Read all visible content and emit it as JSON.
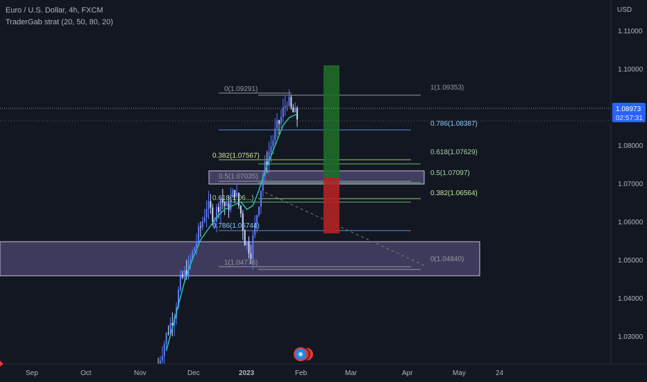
{
  "header": {
    "symbol_line": "Euro / U.S. Dollar, 4h, FXCM",
    "indicator_line": "TraderGab strat (20, 50, 80, 20)"
  },
  "price_axis": {
    "currency": "USD",
    "ticks": [
      "1.11000",
      "1.10000",
      "1.08000",
      "1.07000",
      "1.06000",
      "1.05000",
      "1.04000",
      "1.03000"
    ],
    "current_price": "1.08973",
    "countdown": "02:57:31"
  },
  "time_axis": {
    "ticks": [
      "Sep",
      "Oct",
      "Nov",
      "Dec",
      "2023",
      "Feb",
      "Mar",
      "Apr",
      "May",
      "24"
    ]
  },
  "fib_sets": [
    {
      "levels": [
        {
          "text": "0(1.09291)",
          "color": "#9598a1"
        },
        {
          "text": "0.382(1.07567)",
          "color": "#c8e6a0"
        },
        {
          "text": "0.5(1.07035)",
          "color": "#9598a1"
        },
        {
          "text": "0.618(1.06...)",
          "color": "#a5d6a7"
        },
        {
          "text": "0.786(1.05744)",
          "color": "#90caf9"
        },
        {
          "text": "1(1.04778)",
          "color": "#9598a1"
        }
      ]
    },
    {
      "levels": [
        {
          "text": "1(1.09353)",
          "color": "#9598a1"
        },
        {
          "text": "0.786(1.08387)",
          "color": "#90caf9"
        },
        {
          "text": "0.618(1.07629)",
          "color": "#a5d6a7"
        },
        {
          "text": "0.5(1.07097)",
          "color": "#a5d6a7"
        },
        {
          "text": "0.382(1.06564)",
          "color": "#c8e6a0"
        },
        {
          "text": "0(1.04840)",
          "color": "#9598a1"
        }
      ]
    }
  ],
  "colors": {
    "background": "#131722",
    "candle": "#5b7bff",
    "ma_line": "#26c6a8",
    "zone_fill": "#6a5e95",
    "target_green": "#1f6b2a",
    "stop_red": "#b22222",
    "price_tag": "#2962ff"
  },
  "chart_data": {
    "type": "candlestick",
    "title": "Euro / U.S. Dollar, 4h, FXCM",
    "ylim": [
      1.0225,
      1.1175
    ],
    "x_ticks": [
      "Sep",
      "Oct",
      "Nov",
      "Dec",
      "2023",
      "Feb",
      "Mar",
      "Apr",
      "May",
      "24"
    ],
    "y_ticks": [
      1.03,
      1.04,
      1.05,
      1.06,
      1.07,
      1.08,
      1.1,
      1.11
    ],
    "price_path": [
      [
        0,
        1.0225
      ],
      [
        4,
        1.03
      ],
      [
        8,
        1.036
      ],
      [
        11,
        1.044
      ],
      [
        15,
        1.048
      ],
      [
        19,
        1.055
      ],
      [
        22,
        1.06
      ],
      [
        24,
        1.064
      ],
      [
        28,
        1.061
      ],
      [
        31,
        1.066
      ],
      [
        34,
        1.063
      ],
      [
        38,
        1.068
      ],
      [
        41,
        1.062
      ],
      [
        43,
        1.055
      ],
      [
        46,
        1.052
      ],
      [
        49,
        1.062
      ],
      [
        52,
        1.072
      ],
      [
        55,
        1.078
      ],
      [
        58,
        1.083
      ],
      [
        61,
        1.087
      ],
      [
        64,
        1.092
      ],
      [
        66,
        1.089
      ],
      [
        69,
        1.087
      ]
    ],
    "ma_path": [
      [
        4,
        1.026
      ],
      [
        9,
        1.036
      ],
      [
        13,
        1.044
      ],
      [
        17,
        1.05
      ],
      [
        21,
        1.055
      ],
      [
        25,
        1.058
      ],
      [
        29,
        1.061
      ],
      [
        33,
        1.063
      ],
      [
        37,
        1.064
      ],
      [
        41,
        1.065
      ],
      [
        44,
        1.063
      ],
      [
        47,
        1.064
      ],
      [
        50,
        1.068
      ],
      [
        53,
        1.073
      ],
      [
        56,
        1.077
      ],
      [
        59,
        1.081
      ],
      [
        62,
        1.085
      ],
      [
        65,
        1.087
      ],
      [
        69,
        1.088
      ]
    ],
    "fib_retracement_1": {
      "0": 1.09291,
      "0.382": 1.07567,
      "0.5": 1.07035,
      "0.618": 1.065,
      "0.786": 1.05744,
      "1": 1.04778
    },
    "fib_retracement_2": {
      "1": 1.09353,
      "0.786": 1.08387,
      "0.618": 1.07629,
      "0.5": 1.07097,
      "0.382": 1.06564,
      "0": 1.0484
    },
    "zones": [
      [
        1.0693,
        1.0735
      ],
      [
        1.0462,
        1.0552
      ]
    ],
    "position": {
      "target_top": 1.101,
      "entry": 1.0715,
      "stop": 1.057
    },
    "current_price": 1.08973
  }
}
